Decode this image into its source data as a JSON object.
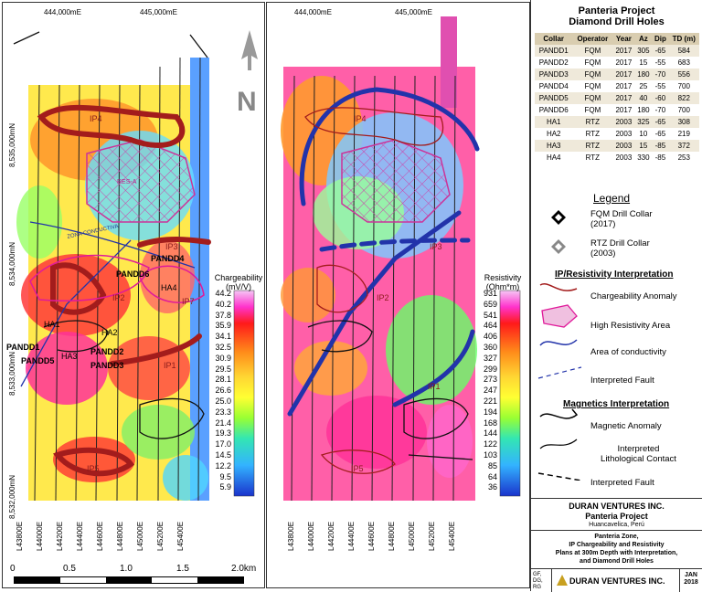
{
  "map_left": {
    "top_coords": [
      "444,000mE",
      "445,000mE"
    ],
    "left_coords": [
      "8,535,000mN",
      "8,534,000mN",
      "8,533,000mN",
      "8,532,000mN"
    ],
    "bottom_lines": [
      "L43800E",
      "L44000E",
      "L44200E",
      "L44400E",
      "L44600E",
      "L44800E",
      "L45000E",
      "L45200E",
      "L45400E"
    ],
    "anomalies": [
      "IP4",
      "IP3",
      "IP2",
      "IP1",
      "IP5",
      "IP7"
    ],
    "resa_label": "RES-A",
    "zone_label": "ZONA CONDUCTIVA",
    "colorbar": {
      "title_line1": "Chargeability",
      "title_line2": "(mV/V)",
      "labels": [
        "44.2",
        "40.2",
        "37.8",
        "35.9",
        "34.1",
        "32.5",
        "30.9",
        "29.5",
        "28.1",
        "26.6",
        "25.0",
        "23.3",
        "21.4",
        "19.3",
        "17.0",
        "14.5",
        "12.2",
        "9.5",
        "5.9"
      ]
    },
    "collars": [
      "PANDD1",
      "PANDD2",
      "PANDD3",
      "PANDD4",
      "PANDD5",
      "PANDD6",
      "HA1",
      "HA2",
      "HA3",
      "HA4"
    ]
  },
  "map_right": {
    "top_coords": [
      "444,000mE",
      "445,000mE"
    ],
    "bottom_lines": [
      "L43800E",
      "L44000E",
      "L44200E",
      "L44400E",
      "L44600E",
      "L44800E",
      "L45000E",
      "L45200E",
      "L45400E"
    ],
    "anomalies": [
      "IP4",
      "IP3",
      "IP2",
      "IP1",
      "IP5"
    ],
    "colorbar": {
      "title_line1": "Resistivity",
      "title_line2": "(Ohm*m)",
      "labels": [
        "931",
        "659",
        "541",
        "464",
        "406",
        "360",
        "327",
        "299",
        "273",
        "247",
        "221",
        "194",
        "168",
        "144",
        "122",
        "103",
        "85",
        "64",
        "36"
      ]
    }
  },
  "scalebar": {
    "labels": [
      "0",
      "0.5",
      "1.0",
      "1.5",
      "2.0km"
    ]
  },
  "table": {
    "title_line1": "Panteria Project",
    "title_line2": "Diamond Drill Holes",
    "headers": [
      "Collar",
      "Operator",
      "Year",
      "Az",
      "Dip",
      "TD (m)"
    ],
    "rows": [
      [
        "PANDD1",
        "FQM",
        "2017",
        "305",
        "-65",
        "584"
      ],
      [
        "PANDD2",
        "FQM",
        "2017",
        "15",
        "-55",
        "683"
      ],
      [
        "PANDD3",
        "FQM",
        "2017",
        "180",
        "-70",
        "556"
      ],
      [
        "PANDD4",
        "FQM",
        "2017",
        "25",
        "-55",
        "700"
      ],
      [
        "PANDD5",
        "FQM",
        "2017",
        "40",
        "-60",
        "822"
      ],
      [
        "PANDD6",
        "FQM",
        "2017",
        "180",
        "-70",
        "700"
      ],
      [
        "HA1",
        "RTZ",
        "2003",
        "325",
        "-65",
        "308"
      ],
      [
        "HA2",
        "RTZ",
        "2003",
        "10",
        "-65",
        "219"
      ],
      [
        "HA3",
        "RTZ",
        "2003",
        "15",
        "-85",
        "372"
      ],
      [
        "HA4",
        "RTZ",
        "2003",
        "330",
        "-85",
        "253"
      ]
    ]
  },
  "legend": {
    "title": "Legend",
    "fqm_line1": "FQM Drill Collar",
    "fqm_line2": "(2017)",
    "rtz_line1": "RTZ Drill Collar",
    "rtz_line2": "(2003)",
    "ip_title": "IP/Resistivity Interpretation",
    "chargeability": "Chargeability Anomaly",
    "high_res": "High Resistivity Area",
    "conductivity": "Area of conductivity",
    "fault1": "Interpreted Fault",
    "mag_title": "Magnetics Interpretation",
    "mag_anomaly": "Magnetic Anomaly",
    "litho_line1": "Interpreted",
    "litho_line2": "Lithological Contact",
    "fault2": "Interpreted Fault"
  },
  "titleblock": {
    "company": "DURAN VENTURES INC.",
    "project": "Panteria Project",
    "location": "Huancavelica, Perú",
    "desc1": "Panteria Zone,",
    "desc2": "IP Chargeability and Resistivity",
    "desc3": "Plans at 300m Depth with Interpretation,",
    "desc4": "and Diamond Drill Holes",
    "initials": "GF, DG, RG",
    "company_short": "DURAN VENTURES INC.",
    "date_line1": "JAN",
    "date_line2": "2018"
  },
  "north": "N"
}
